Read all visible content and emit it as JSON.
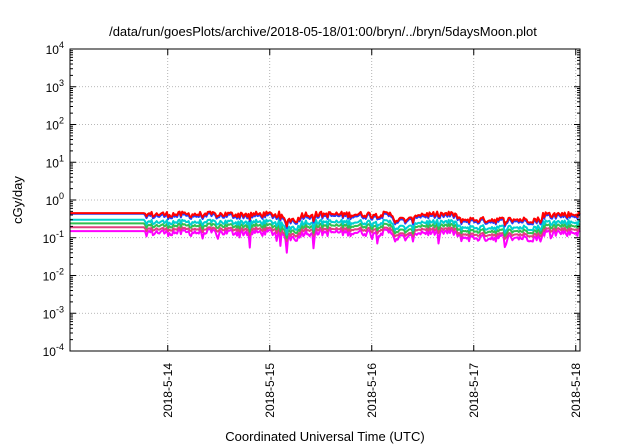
{
  "chart_data": {
    "type": "line",
    "title": "/data/run/goesPlots/archive/2018-05-18/01:00/bryn/../bryn/5daysMoon.plot",
    "xlabel": "Coordinated Universal Time (UTC)",
    "ylabel": "cGy/day",
    "yscale": "log",
    "ylim": [
      0.0001,
      10000
    ],
    "xlim": [
      "2018-05-13 01:00",
      "2018-05-18 01:00"
    ],
    "grid": true,
    "legend": "none",
    "y_ticks": [
      {
        "base": "10",
        "exp": "-4",
        "value": 0.0001
      },
      {
        "base": "10",
        "exp": "-3",
        "value": 0.001
      },
      {
        "base": "10",
        "exp": "-2",
        "value": 0.01
      },
      {
        "base": "10",
        "exp": "-1",
        "value": 0.1
      },
      {
        "base": "10",
        "exp": "0",
        "value": 1
      },
      {
        "base": "10",
        "exp": "1",
        "value": 10
      },
      {
        "base": "10",
        "exp": "2",
        "value": 100
      },
      {
        "base": "10",
        "exp": "3",
        "value": 1000
      },
      {
        "base": "10",
        "exp": "4",
        "value": 10000
      }
    ],
    "x_ticks": [
      {
        "label": "2018-5-14",
        "value": "2018-05-14 00:00"
      },
      {
        "label": "2018-5-15",
        "value": "2018-05-15 00:00"
      },
      {
        "label": "2018-5-16",
        "value": "2018-05-16 00:00"
      },
      {
        "label": "2018-5-17",
        "value": "2018-05-17 00:00"
      },
      {
        "label": "2018-5-18",
        "value": "2018-05-18 00:00"
      }
    ],
    "series": [
      {
        "color": "#ff0000",
        "base": 0.42,
        "start_value": 0.45,
        "variation": 0.18,
        "dip_depth": 0.25
      },
      {
        "color": "#1f3fff",
        "base": 0.38,
        "start_value": 0.43,
        "variation": 0.18,
        "dip_depth": 0.25
      },
      {
        "color": "#00d0d0",
        "base": 0.26,
        "start_value": 0.3,
        "variation": 0.16,
        "dip_depth": 0.3
      },
      {
        "color": "#30c050",
        "base": 0.21,
        "start_value": 0.24,
        "variation": 0.14,
        "dip_depth": 0.3
      },
      {
        "color": "#e04080",
        "base": 0.17,
        "start_value": 0.19,
        "variation": 0.12,
        "dip_depth": 0.3
      },
      {
        "color": "#ff00ff",
        "base": 0.14,
        "start_value": 0.15,
        "variation": 0.22,
        "dip_depth": 0.6
      }
    ],
    "flat_until": "2018-05-13 18:30",
    "low_segments": [
      {
        "start": "2018-05-15 03:00",
        "end": "2018-05-15 07:00"
      },
      {
        "start": "2018-05-16 05:00",
        "end": "2018-05-16 10:00"
      },
      {
        "start": "2018-05-16 20:00",
        "end": "2018-05-17 16:00"
      }
    ]
  }
}
